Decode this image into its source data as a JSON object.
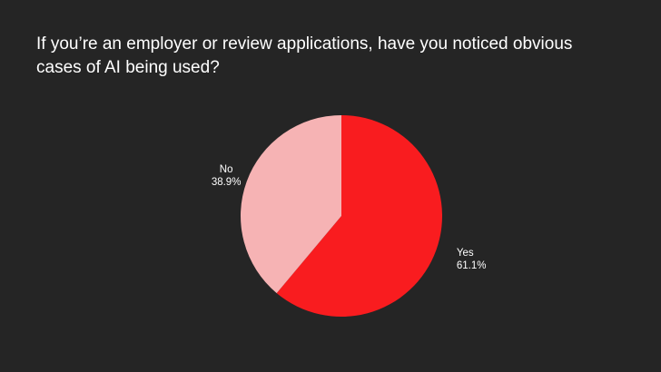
{
  "chart_data": {
    "type": "pie",
    "title": "If you’re an employer or review applications, have you noticed obvious cases of AI being used?",
    "slices": [
      {
        "label": "Yes",
        "value": 61.1,
        "value_label": "61.1%",
        "color": "#f91c1f"
      },
      {
        "label": "No",
        "value": 38.9,
        "value_label": "38.9%",
        "color": "#f6b3b4"
      }
    ],
    "start_angle_deg": 0,
    "direction": "clockwise",
    "background": "#252525"
  }
}
